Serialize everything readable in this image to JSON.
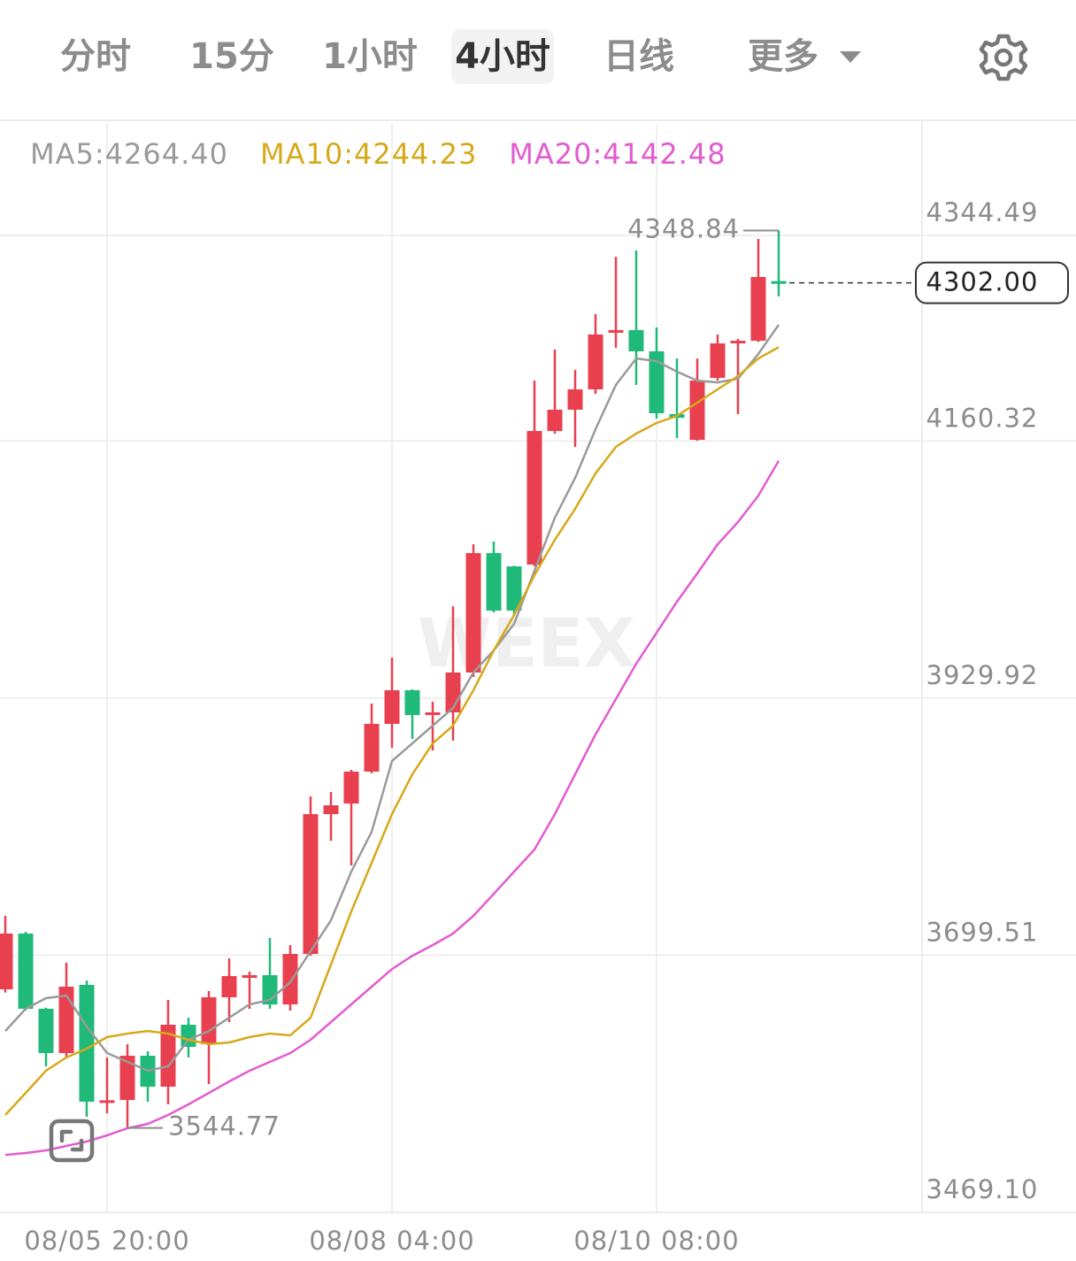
{
  "tabs": {
    "items": [
      "分时",
      "15分",
      "1小时",
      "4小时",
      "日线"
    ],
    "selected": 3,
    "more": "更多"
  },
  "chart_data": {
    "type": "candlestick",
    "watermark": "WEEX",
    "categories": [
      null,
      null,
      null,
      null,
      null,
      "08/05 20:00",
      null,
      null,
      null,
      null,
      null,
      null,
      null,
      null,
      null,
      null,
      null,
      null,
      null,
      "08/08 04:00",
      null,
      null,
      null,
      null,
      null,
      null,
      null,
      null,
      null,
      null,
      null,
      null,
      "08/10 08:00",
      null,
      null,
      null,
      null,
      null,
      null
    ],
    "open": [
      3668.9,
      3718.9,
      3651.5,
      3611.8,
      3672.9,
      3568.0,
      3569.8,
      3609.4,
      3581.7,
      3637.2,
      3619.8,
      3661.8,
      3680.8,
      3681.6,
      3655.4,
      3700.6,
      3825.9,
      3835.4,
      3864.0,
      3906.8,
      3936.9,
      3916.5,
      3917.1,
      3952.8,
      4059.8,
      4047.9,
      4049.5,
      4169.2,
      4188.3,
      4206.5,
      4258.8,
      4259.6,
      4240.6,
      4184.3,
      4161.3,
      4216.8,
      4249.3,
      4250.1,
      4303.5
    ],
    "high": [
      3734.7,
      3720.5,
      3652.5,
      3692.7,
      3676.8,
      3607.9,
      3619.8,
      3613.4,
      3659.4,
      3643.5,
      3667.3,
      3696.7,
      3684.8,
      3714.9,
      3708.6,
      3841.8,
      3845.7,
      3865.6,
      3925.0,
      3966.2,
      3937.8,
      3926.6,
      4012.2,
      4067.7,
      4070.1,
      4048.5,
      4214.4,
      4242.2,
      4223.9,
      4273.9,
      4325.4,
      4331.0,
      4262.0,
      4234.2,
      4234.2,
      4255.7,
      4251.7,
      4341.3,
      4348.84
    ],
    "low": [
      3666.0,
      3650.0,
      3599.9,
      3607.9,
      3554.7,
      3557.9,
      3544.77,
      3568.2,
      3565.8,
      3607.9,
      3584.1,
      3639.6,
      3651.5,
      3651.5,
      3649.9,
      3699.0,
      3802.1,
      3779.9,
      3862.5,
      3885.4,
      3893.3,
      3883.0,
      3891.7,
      3948.8,
      4006.7,
      4004.3,
      4047.9,
      4166.9,
      4155.0,
      4202.5,
      4243.8,
      4210.5,
      4180.3,
      4162.9,
      4160.5,
      4214.4,
      4184.3,
      4249.0,
      4289.8
    ],
    "close": [
      3718.9,
      3651.5,
      3611.8,
      3671.3,
      3568.2,
      3569.5,
      3609.4,
      3581.7,
      3637.2,
      3617.4,
      3661.8,
      3680.8,
      3681.6,
      3655.4,
      3700.6,
      3825.9,
      3833.8,
      3864.0,
      3906.8,
      3936.9,
      3914.7,
      3917.1,
      3952.8,
      4059.8,
      4008.3,
      4008.3,
      4169.2,
      4188.3,
      4206.5,
      4255.7,
      4259.6,
      4240.6,
      4185.1,
      4181.1,
      4214.4,
      4247.7,
      4250.1,
      4307.2,
      4302
    ],
    "up_color": "#e8404f",
    "down_color": "#1fb97a",
    "series": [
      {
        "name": "MA5:4264.40",
        "color": "#9a9a9a",
        "values": [
          3631.6,
          3651.5,
          3661.0,
          3663.4,
          3635.6,
          3611.8,
          3603.9,
          3596.0,
          3599.9,
          3623.7,
          3631.6,
          3643.5,
          3655.4,
          3659.4,
          3675.3,
          3703.0,
          3730.8,
          3774.4,
          3810.0,
          3873.5,
          3889.3,
          3905.2,
          3921.1,
          3952.8,
          3972.6,
          3996.4,
          4044.0,
          4091.5,
          4127.2,
          4170.8,
          4210.5,
          4234.2,
          4231.9,
          4222.4,
          4214.4,
          4212.8,
          4216.0,
          4238.2,
          4264.4
        ]
      },
      {
        "name": "MA10:4244.23",
        "color": "#d6a91a",
        "values": [
          3556.3,
          3576.1,
          3596.0,
          3607.9,
          3615.8,
          3626.1,
          3629.3,
          3631.6,
          3629.3,
          3623.7,
          3619.8,
          3621.3,
          3626.1,
          3629.3,
          3627.7,
          3643.5,
          3691.1,
          3738.7,
          3782.3,
          3825.9,
          3861.6,
          3889.3,
          3905.2,
          3936.9,
          3972.6,
          4004.3,
          4040.0,
          4071.7,
          4099.5,
          4131.2,
          4155.0,
          4166.9,
          4176.4,
          4182.7,
          4194.6,
          4206.5,
          4218.4,
          4234.2,
          4244.23
        ]
      },
      {
        "name": "MA20:4142.48",
        "color": "#e35bd0",
        "values": [
          3520.6,
          3522.2,
          3524.6,
          3528.6,
          3532.5,
          3538.1,
          3544.4,
          3548.4,
          3556.3,
          3565.8,
          3576.1,
          3586.4,
          3596.0,
          3603.9,
          3611.8,
          3623.7,
          3639.6,
          3655.4,
          3671.3,
          3687.1,
          3699.0,
          3708.6,
          3718.9,
          3734.7,
          3754.5,
          3774.4,
          3794.2,
          3825.9,
          3861.6,
          3897.3,
          3929.0,
          3960.7,
          3988.4,
          4016.2,
          4041.6,
          4067.7,
          4087.6,
          4111.3,
          4142.48
        ]
      }
    ],
    "last_price": {
      "value": 4302,
      "label": "4302.00"
    },
    "ylim": [
      3469.1,
      4444.4
    ],
    "yticks": [
      {
        "value": 3469.1,
        "label": "3469.10"
      },
      3699.51,
      3929.92,
      4160.32,
      4344.49
    ],
    "grid": true
  }
}
